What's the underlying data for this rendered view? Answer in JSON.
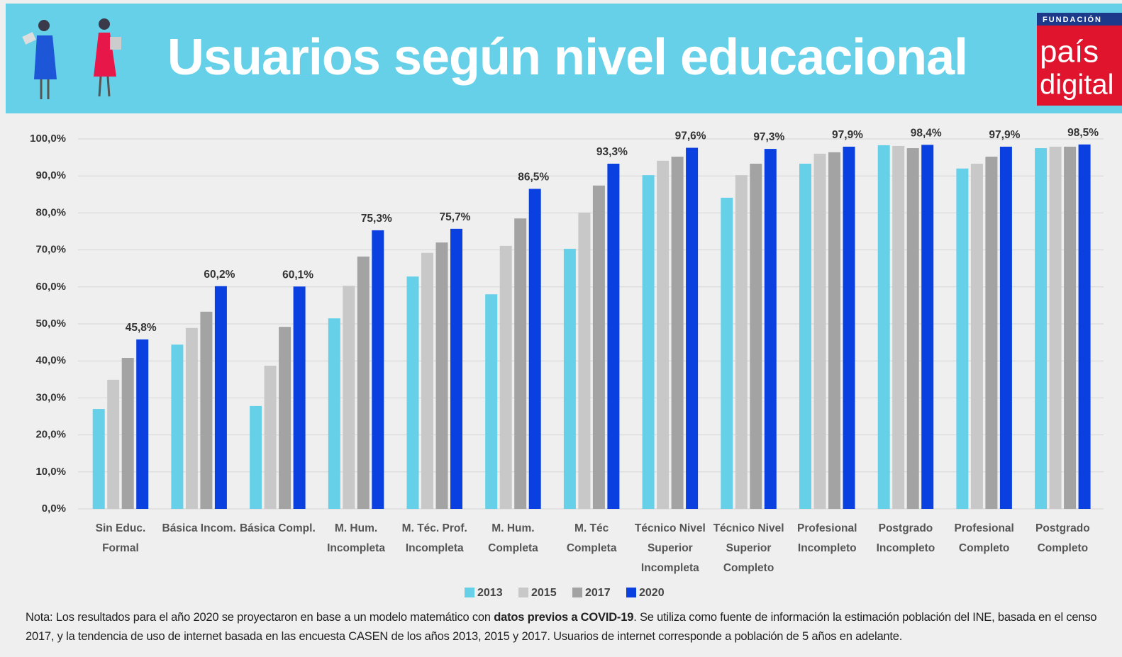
{
  "header": {
    "title": "Usuarios según nivel educacional",
    "logo": [
      "FUNDACIÓN",
      "país",
      "digital"
    ]
  },
  "chart_data": {
    "type": "bar",
    "categories": [
      [
        "Sin Educ.",
        "Formal"
      ],
      [
        "Básica Incom."
      ],
      [
        "Básica Compl."
      ],
      [
        "M. Hum.",
        "Incompleta"
      ],
      [
        "M. Téc. Prof.",
        "Incompleta"
      ],
      [
        "M. Hum.",
        "Completa"
      ],
      [
        "M. Téc",
        "Completa"
      ],
      [
        "Técnico Nivel",
        "Superior",
        "Incompleta"
      ],
      [
        "Técnico Nivel",
        "Superior",
        "Completo"
      ],
      [
        "Profesional",
        "Incompleto"
      ],
      [
        "Postgrado",
        "Incompleto"
      ],
      [
        "Profesional",
        "Completo"
      ],
      [
        "Postgrado",
        "Completo"
      ]
    ],
    "series": [
      {
        "name": "2013",
        "color": "#66d0e8",
        "values": [
          27,
          44.4,
          27.8,
          51.5,
          62.8,
          58,
          70.3,
          90.2,
          84.1,
          93.3,
          98.3,
          92,
          97.5
        ]
      },
      {
        "name": "2015",
        "color": "#c8c8c8",
        "values": [
          34.9,
          48.9,
          38.7,
          60.3,
          69.2,
          71.1,
          80.1,
          94.1,
          90.2,
          96,
          98.1,
          93.3,
          97.9
        ]
      },
      {
        "name": "2017",
        "color": "#a3a3a3",
        "values": [
          40.8,
          53.3,
          49.2,
          68.2,
          72,
          78.5,
          87.4,
          95.2,
          93.3,
          96.4,
          97.5,
          95.2,
          97.9
        ]
      },
      {
        "name": "2020",
        "color": "#0a40e0",
        "values": [
          45.8,
          60.2,
          60.1,
          75.3,
          75.7,
          86.5,
          93.3,
          97.6,
          97.3,
          97.9,
          98.4,
          97.9,
          98.5
        ],
        "value_labels": [
          "45,8%",
          "60,2%",
          "60,1%",
          "75,3%",
          "75,7%",
          "86,5%",
          "93,3%",
          "97,6%",
          "97,3%",
          "97,9%",
          "98,4%",
          "97,9%",
          "98,5%"
        ]
      }
    ],
    "ylim": [
      0,
      100
    ],
    "yticks": [
      {
        "value": 0,
        "label": "0,0%"
      },
      {
        "value": 10,
        "label": "10,0%"
      },
      {
        "value": 20,
        "label": "20,0%"
      },
      {
        "value": 30,
        "label": "30,0%"
      },
      {
        "value": 40,
        "label": "40,0%"
      },
      {
        "value": 50,
        "label": "50,0%"
      },
      {
        "value": 60,
        "label": "60,0%"
      },
      {
        "value": 70,
        "label": "70,0%"
      },
      {
        "value": 80,
        "label": "80,0%"
      },
      {
        "value": 90,
        "label": "90,0%"
      },
      {
        "value": 100,
        "label": "100,0%"
      }
    ],
    "grid": true
  },
  "note": [
    "Nota: Los resultados para el año 2020 se proyectaron en base a un modelo matemático con ",
    "datos previos a COVID-19",
    ". Se utiliza como fuente de información la estimación población del INE, basada en el censo 2017, y la tendencia de uso de internet basada en las encuesta CASEN de los años 2013, 2015 y 2017. Usuarios de internet corresponde a población de 5 años en adelante."
  ]
}
